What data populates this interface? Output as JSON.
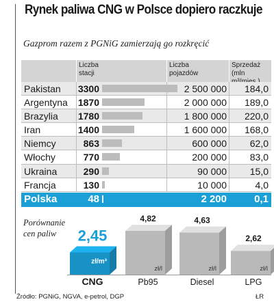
{
  "header": {
    "title": "Rynek paliwa CNG w Polsce dopiero raczkuje",
    "subtitle": "Gazprom razem z PGNiG zamierzają go rozkręcić"
  },
  "table": {
    "col_stations": "Liczba stacji",
    "col_vehicles": "Liczba pojazdów",
    "col_sales_prefix": "Sprzedaż",
    "col_sales_unit": "(mln m³/mies.)"
  },
  "chart_data": [
    {
      "type": "table",
      "columns": [
        "",
        "Liczba stacji",
        "Liczba pojazdów",
        "Sprzedaż (mln m³/mies.)"
      ],
      "rows": [
        {
          "country": "Pakistan",
          "stations": "3300",
          "stations_value": 3300,
          "vehicles": "2 500 000",
          "sales": "184,0"
        },
        {
          "country": "Argentyna",
          "stations": "1870",
          "stations_value": 1870,
          "vehicles": "2 000 000",
          "sales": "189,0"
        },
        {
          "country": "Brazylia",
          "stations": "1780",
          "stations_value": 1780,
          "vehicles": "1 800 000",
          "sales": "220,0"
        },
        {
          "country": "Iran",
          "stations": "1400",
          "stations_value": 1400,
          "vehicles": "1 600 000",
          "sales": "168,0"
        },
        {
          "country": "Niemcy",
          "stations": "863",
          "stations_value": 863,
          "vehicles": "600 000",
          "sales": "62,0"
        },
        {
          "country": "Włochy",
          "stations": "770",
          "stations_value": 770,
          "vehicles": "200 000",
          "sales": "83,0"
        },
        {
          "country": "Ukraina",
          "stations": "290",
          "stations_value": 290,
          "vehicles": "90 000",
          "sales": "15,0"
        },
        {
          "country": "Francja",
          "stations": "130",
          "stations_value": 130,
          "vehicles": "10 000",
          "sales": "4,0"
        }
      ],
      "highlight": {
        "country": "Polska",
        "stations": "48",
        "stations_value": 48,
        "vehicles": "2 200",
        "sales": "0,1"
      }
    },
    {
      "type": "bar",
      "title": "Porównanie cen paliw",
      "categories": [
        "CNG",
        "Pb95",
        "Diesel",
        "LPG"
      ],
      "values": [
        2.45,
        4.82,
        4.63,
        2.62
      ],
      "value_labels": [
        "2,45",
        "4,82",
        "4,63",
        "2,62"
      ],
      "units": [
        "zł/m³",
        "zł/l",
        "zł/l",
        "zł/l"
      ],
      "colors": [
        "#1a9fd6",
        "#c9c9c9",
        "#c9c9c9",
        "#c9c9c9"
      ]
    }
  ],
  "compare": {
    "label_line1": "Porównanie",
    "label_line2": "cen paliw"
  },
  "colors": {
    "accent": "#1a9fd6",
    "header_bg": "#d4d4d4",
    "row_shade": "#e9e9e9",
    "bar_gray": "#bcbcbc",
    "cube_gray": "#c9c9c9"
  },
  "footer": {
    "source": "Źródło: PGNiG, NGVA, e-petrol, DGP",
    "author": "ŁR"
  }
}
